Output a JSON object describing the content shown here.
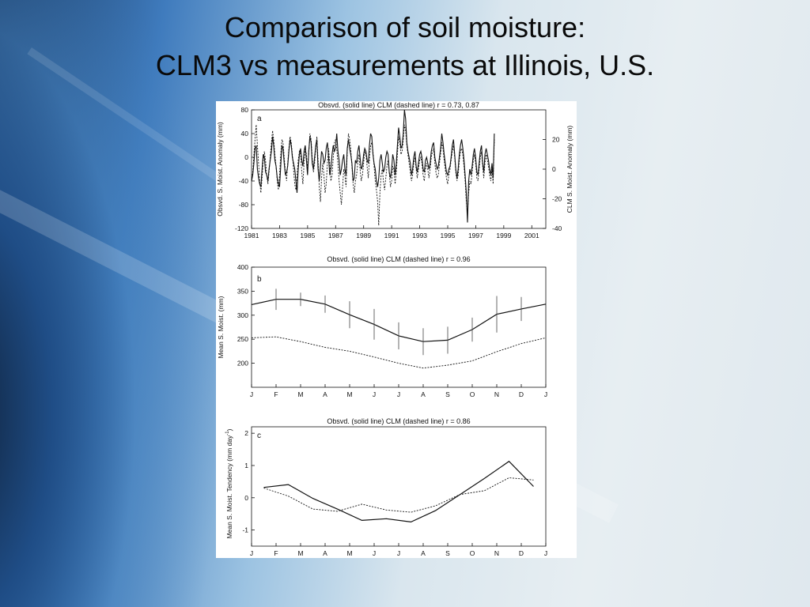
{
  "slide": {
    "title_line1": "Comparison of soil moisture:",
    "title_line2": "CLM3 vs measurements at Illinois, U.S."
  },
  "chart_data": [
    {
      "type": "line",
      "panel_label": "a",
      "title": "Obsvd. (solid line)  CLM (dashed line)  r =  0.73,  0.87",
      "ylabel": "Obsvd. S. Moist. Anomaly (mm)",
      "ylabel_right": "CLM S. Moist. Anomaly (mm)",
      "ylim": [
        -120,
        80
      ],
      "ylim_right": [
        -40,
        40
      ],
      "xlim": [
        1981,
        2002
      ],
      "x_ticks": [
        "1981",
        "1983",
        "1985",
        "1987",
        "1989",
        "1991",
        "1993",
        "1995",
        "1997",
        "1999",
        "2001"
      ],
      "y_ticks": [
        "80",
        "40",
        "0",
        "-40",
        "-80",
        "-120"
      ],
      "y_ticks_right": [
        "20",
        "0",
        "-20",
        "-40"
      ],
      "series": [
        {
          "style": "solid",
          "x_start": 1981.0,
          "x_step": 0.0833,
          "values": [
            -40,
            -30,
            -10,
            15,
            20,
            -20,
            -35,
            -45,
            -50,
            -20,
            5,
            0,
            -25,
            -30,
            -40,
            -20,
            -5,
            10,
            35,
            20,
            -5,
            -15,
            -35,
            -45,
            -50,
            -15,
            20,
            15,
            -10,
            -30,
            -25,
            -15,
            10,
            30,
            20,
            0,
            -10,
            -20,
            -40,
            -60,
            -20,
            5,
            15,
            -5,
            -15,
            10,
            20,
            -5,
            -30,
            10,
            35,
            25,
            -10,
            -20,
            0,
            20,
            30,
            -20,
            -40,
            -15,
            10,
            5,
            -10,
            -5,
            15,
            25,
            0,
            -30,
            -20,
            5,
            20,
            10,
            15,
            40,
            10,
            -5,
            -30,
            -20,
            -5,
            5,
            -20,
            -30,
            15,
            30,
            15,
            5,
            -10,
            -40,
            -35,
            -5,
            -10,
            10,
            20,
            0,
            -20,
            -15,
            5,
            15,
            10,
            -5,
            -10,
            20,
            40,
            35,
            5,
            -10,
            -20,
            -40,
            -50,
            -35,
            -5,
            5,
            -10,
            -25,
            -20,
            0,
            10,
            5,
            -25,
            -35,
            -20,
            5,
            -5,
            -30,
            -10,
            20,
            50,
            35,
            15,
            20,
            40,
            80,
            65,
            25,
            10,
            0,
            -10,
            -30,
            -20,
            0,
            10,
            -15,
            -25,
            -10,
            5,
            10,
            0,
            -20,
            -25,
            -5,
            0,
            -10,
            -20,
            -10,
            10,
            20,
            25,
            0,
            -10,
            -20,
            -15,
            0,
            15,
            40,
            25,
            5,
            -10,
            -25,
            -30,
            -20,
            -15,
            0,
            20,
            30,
            5,
            -20,
            -35,
            -20,
            5,
            20,
            30,
            15,
            -5,
            -30,
            -60,
            -110,
            -40,
            -20,
            -30,
            -15,
            5,
            15,
            0,
            -25,
            -30,
            -10,
            10,
            20,
            -10,
            -25,
            5,
            15,
            5,
            -5,
            -20,
            -30,
            -10,
            -35,
            40
          ]
        },
        {
          "style": "dashed",
          "x_start": 1981.0,
          "x_step": 0.0833,
          "values": [
            -40,
            -25,
            5,
            30,
            55,
            20,
            -10,
            -40,
            -60,
            -35,
            -5,
            10,
            -5,
            -30,
            -45,
            -25,
            0,
            25,
            45,
            30,
            5,
            -15,
            -40,
            -55,
            -30,
            5,
            30,
            25,
            0,
            -25,
            -40,
            -10,
            15,
            35,
            25,
            5,
            -20,
            -45,
            -55,
            -30,
            -5,
            10,
            5,
            -25,
            -45,
            -10,
            15,
            5,
            -20,
            5,
            40,
            30,
            0,
            -25,
            -10,
            15,
            35,
            -5,
            -50,
            -75,
            -35,
            -10,
            -30,
            -60,
            -45,
            -10,
            15,
            -10,
            -40,
            -30,
            0,
            25,
            30,
            15,
            -10,
            -40,
            -60,
            -80,
            -50,
            -20,
            -30,
            -50,
            10,
            40,
            30,
            15,
            -15,
            -45,
            -60,
            -40,
            -30,
            -10,
            5,
            -20,
            -40,
            -30,
            -10,
            10,
            5,
            -15,
            -35,
            -5,
            20,
            25,
            10,
            -15,
            -40,
            -55,
            -75,
            -115,
            -60,
            -30,
            -20,
            -40,
            -55,
            -35,
            -15,
            -5,
            -25,
            -50,
            -40,
            -15,
            -20,
            -45,
            -25,
            5,
            35,
            25,
            5,
            10,
            30,
            55,
            45,
            20,
            5,
            -10,
            -25,
            -40,
            -30,
            -10,
            0,
            -20,
            -35,
            -20,
            -5,
            0,
            -10,
            -30,
            -40,
            -20,
            -10,
            -20,
            -35,
            -20,
            0,
            10,
            15,
            -10,
            -25,
            -35,
            -30,
            -10,
            5,
            25,
            15,
            -5,
            -20,
            -35,
            -45,
            -30,
            -20,
            -5,
            10,
            20,
            0,
            -25,
            -40,
            -30,
            -5,
            10,
            15,
            5,
            -15,
            -40,
            -75,
            -95,
            -60,
            -40,
            -45,
            -25,
            -5,
            5,
            -10,
            -35,
            -40,
            -20,
            0,
            10,
            -15,
            -35,
            -10,
            5,
            -5,
            -15,
            -30,
            -40,
            -20,
            -45,
            30
          ]
        }
      ]
    },
    {
      "type": "line",
      "panel_label": "b",
      "title": "Obsvd. (solid line)  CLM (dashed line)  r =  0.96",
      "ylabel": "Mean S. Moist. (mm)",
      "ylim": [
        150,
        400
      ],
      "y_ticks": [
        "400",
        "350",
        "300",
        "250",
        "200"
      ],
      "categories": [
        "J",
        "F",
        "M",
        "A",
        "M",
        "J",
        "J",
        "A",
        "S",
        "O",
        "N",
        "D",
        "J"
      ],
      "series": [
        {
          "style": "solid",
          "values": [
            322,
            333,
            333,
            323,
            301,
            281,
            257,
            245,
            248,
            270,
            302,
            313,
            323
          ],
          "errors": [
            null,
            22,
            14,
            18,
            28,
            32,
            28,
            28,
            28,
            25,
            38,
            25,
            null
          ]
        },
        {
          "style": "dashed",
          "values": [
            253,
            255,
            245,
            233,
            225,
            213,
            200,
            190,
            196,
            205,
            224,
            241,
            253
          ]
        }
      ]
    },
    {
      "type": "line",
      "panel_label": "c",
      "title": "Obsvd. (solid line)  CLM (dashed line)  r =  0.86",
      "ylabel": "Mean S. Moist. Tendency (mm day",
      "ylabel_sup": "-1",
      "ylabel_close": ")",
      "ylim": [
        -1.5,
        2.2
      ],
      "y_ticks": [
        "2",
        "1",
        "0",
        "-1"
      ],
      "categories": [
        "J",
        "F",
        "M",
        "A",
        "M",
        "J",
        "J",
        "A",
        "S",
        "O",
        "N",
        "D",
        "J"
      ],
      "series": [
        {
          "style": "solid",
          "x": [
            0.5,
            1.5,
            2.5,
            3.5,
            4.5,
            5.5,
            6.5,
            7.5,
            8.5,
            9.5,
            10.5,
            11.5
          ],
          "values": [
            0.32,
            0.41,
            -0.02,
            -0.35,
            -0.7,
            -0.65,
            -0.75,
            -0.4,
            0.1,
            0.6,
            1.13,
            0.35
          ]
        },
        {
          "style": "dashed",
          "x": [
            0.5,
            1.5,
            2.5,
            3.5,
            4.5,
            5.5,
            6.5,
            7.5,
            8.5,
            9.5,
            10.5,
            11.5
          ],
          "values": [
            0.3,
            0.05,
            -0.35,
            -0.42,
            -0.2,
            -0.38,
            -0.45,
            -0.25,
            0.1,
            0.22,
            0.62,
            0.55
          ]
        }
      ]
    }
  ]
}
